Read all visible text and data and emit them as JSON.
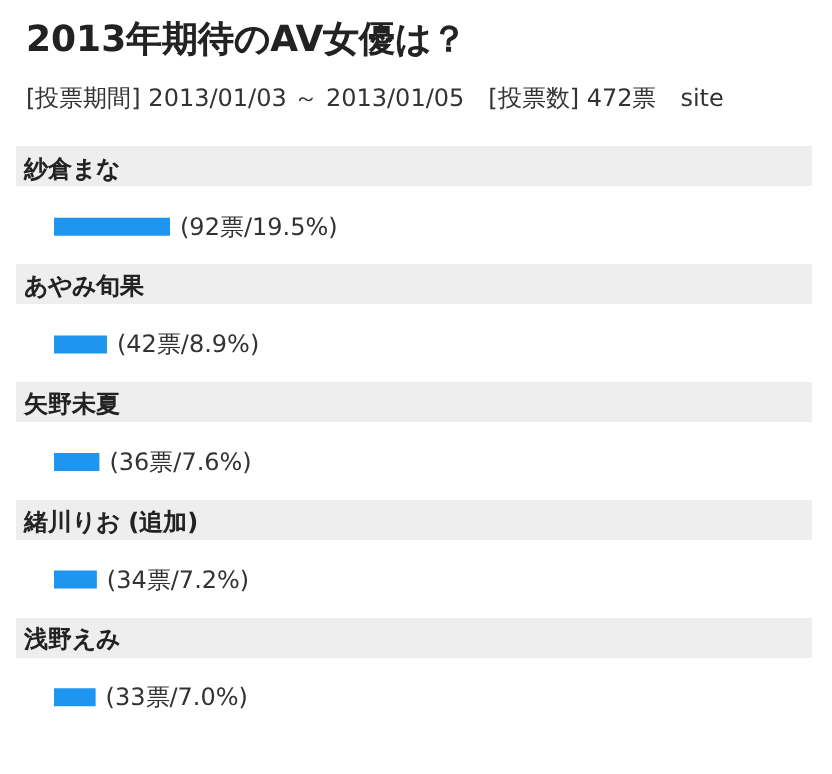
{
  "chart_data": {
    "type": "bar",
    "orientation": "horizontal",
    "title": "2013年期待のAV女優は？",
    "subtitle": "[投票期間] 2013/01/03 ～ 2013/01/05　[投票数] 472票　site",
    "categories": [
      "紗倉まな",
      "あやみ旬果",
      "矢野未夏",
      "緒川りお (追加)",
      "浅野えみ"
    ],
    "values": [
      92,
      42,
      36,
      34,
      33
    ],
    "value_labels": [
      "(92票/19.5%)",
      "(42票/8.9%)",
      "(36票/7.6%)",
      "(34票/7.2%)",
      "(33票/7.0%)"
    ],
    "color": "#1e96f0"
  }
}
